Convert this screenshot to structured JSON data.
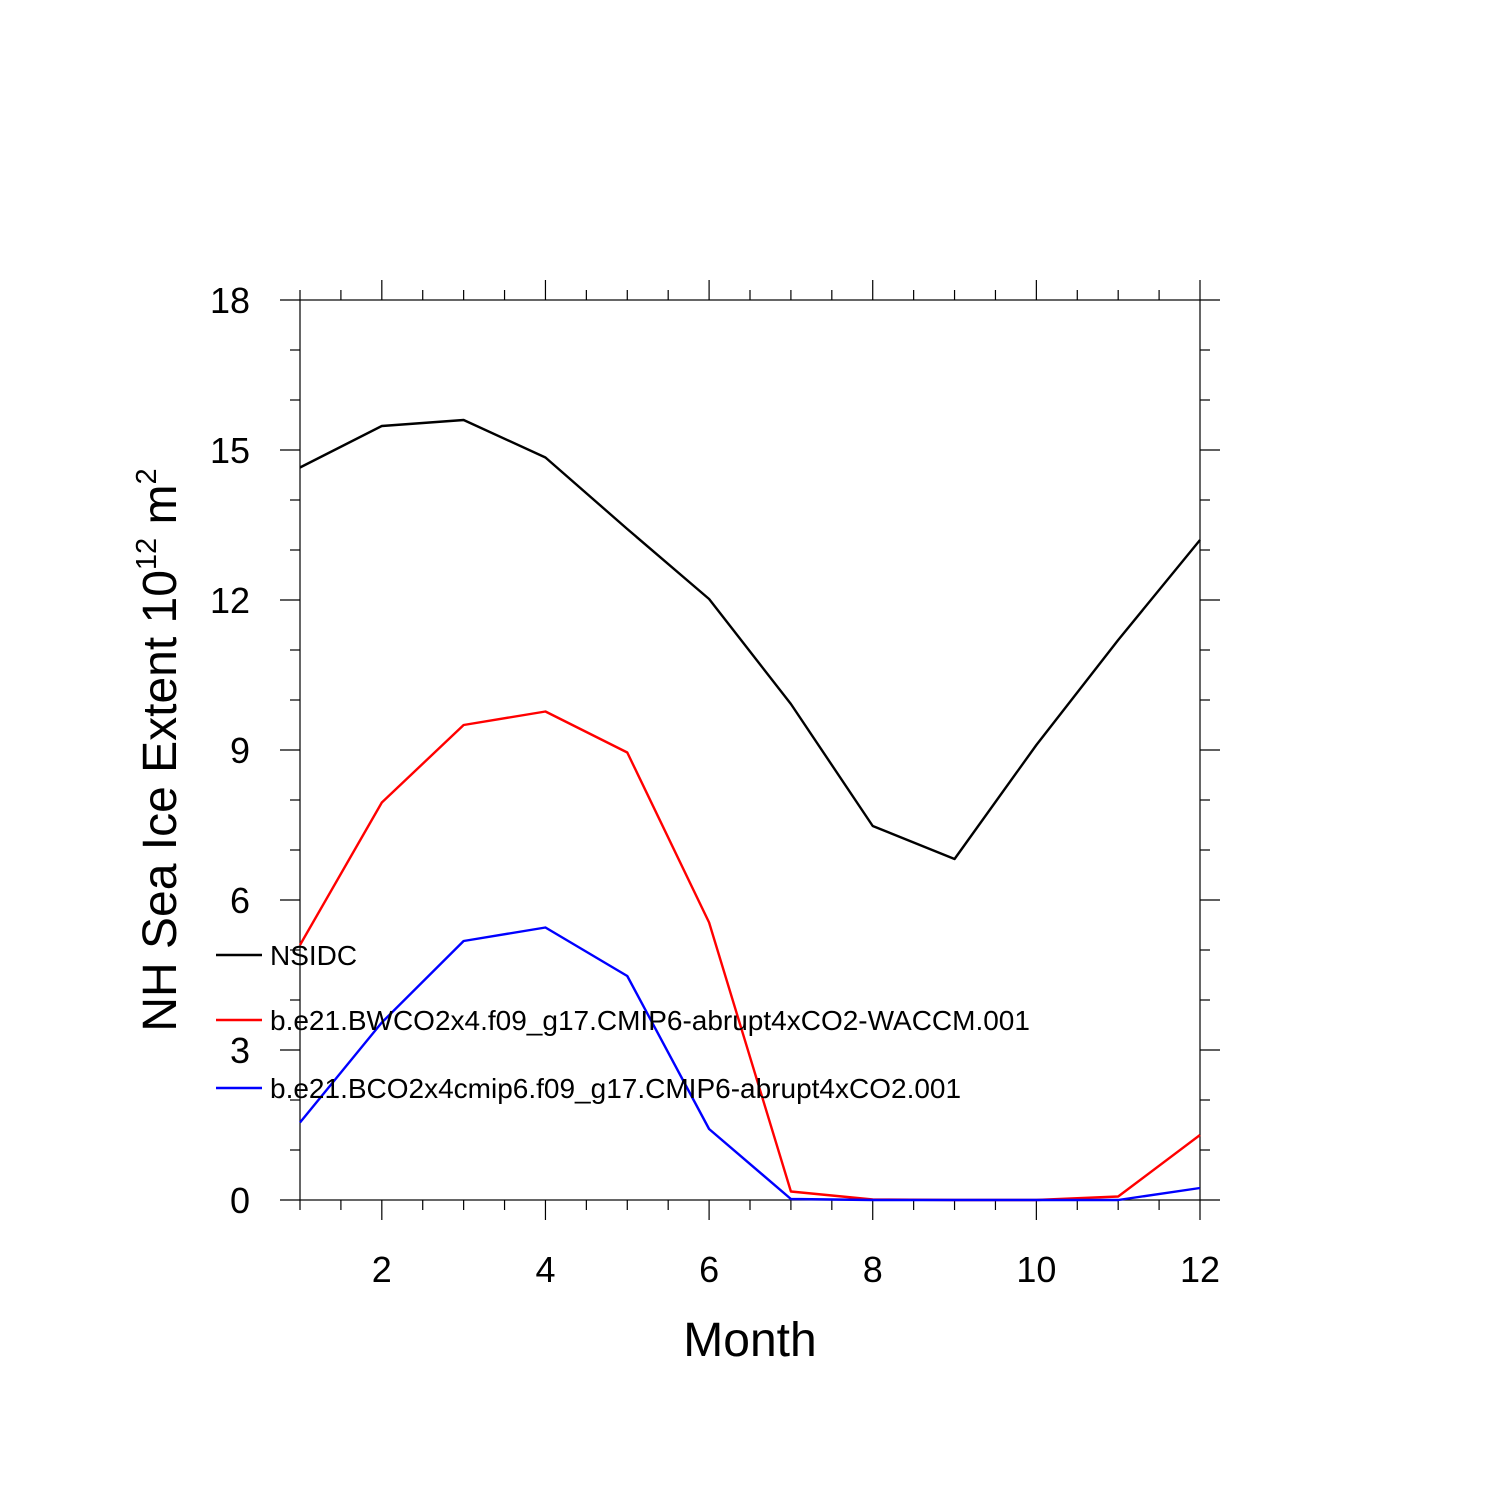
{
  "chart_data": {
    "type": "line",
    "title": "",
    "xlabel": "Month",
    "ylabel": {
      "base": "NH Sea Ice Extent 10",
      "exponent": "12",
      "unit": " m",
      "unit_exponent": "2"
    },
    "x": [
      1,
      2,
      3,
      4,
      5,
      6,
      7,
      8,
      9,
      10,
      11,
      12
    ],
    "xlim": [
      1,
      12
    ],
    "ylim": [
      0,
      18
    ],
    "x_major_ticks": [
      2,
      4,
      6,
      8,
      10,
      12
    ],
    "x_minor_step": 0.5,
    "y_major_ticks": [
      0,
      3,
      6,
      9,
      12,
      15,
      18
    ],
    "y_minor_step": 1,
    "grid": false,
    "legend_position": "left-inside",
    "series": [
      {
        "name": "NSIDC",
        "color": "#000000",
        "values": [
          14.65,
          15.48,
          15.6,
          14.85,
          13.42,
          12.02,
          9.92,
          7.48,
          6.82,
          9.1,
          11.2,
          13.2
        ]
      },
      {
        "name": "b.e21.BWCO2x4.f09_g17.CMIP6-abrupt4xCO2-WACCM.001",
        "color": "#ff0000",
        "values": [
          5.1,
          7.95,
          9.5,
          9.77,
          8.95,
          5.55,
          0.17,
          0.01,
          0.0,
          0.0,
          0.07,
          1.3
        ]
      },
      {
        "name": "b.e21.BCO2x4cmip6.f09_g17.CMIP6-abrupt4xCO2.001",
        "color": "#0000ff",
        "values": [
          1.55,
          3.55,
          5.18,
          5.45,
          4.48,
          1.42,
          0.02,
          0.0,
          0.0,
          0.0,
          0.0,
          0.24
        ]
      }
    ]
  }
}
